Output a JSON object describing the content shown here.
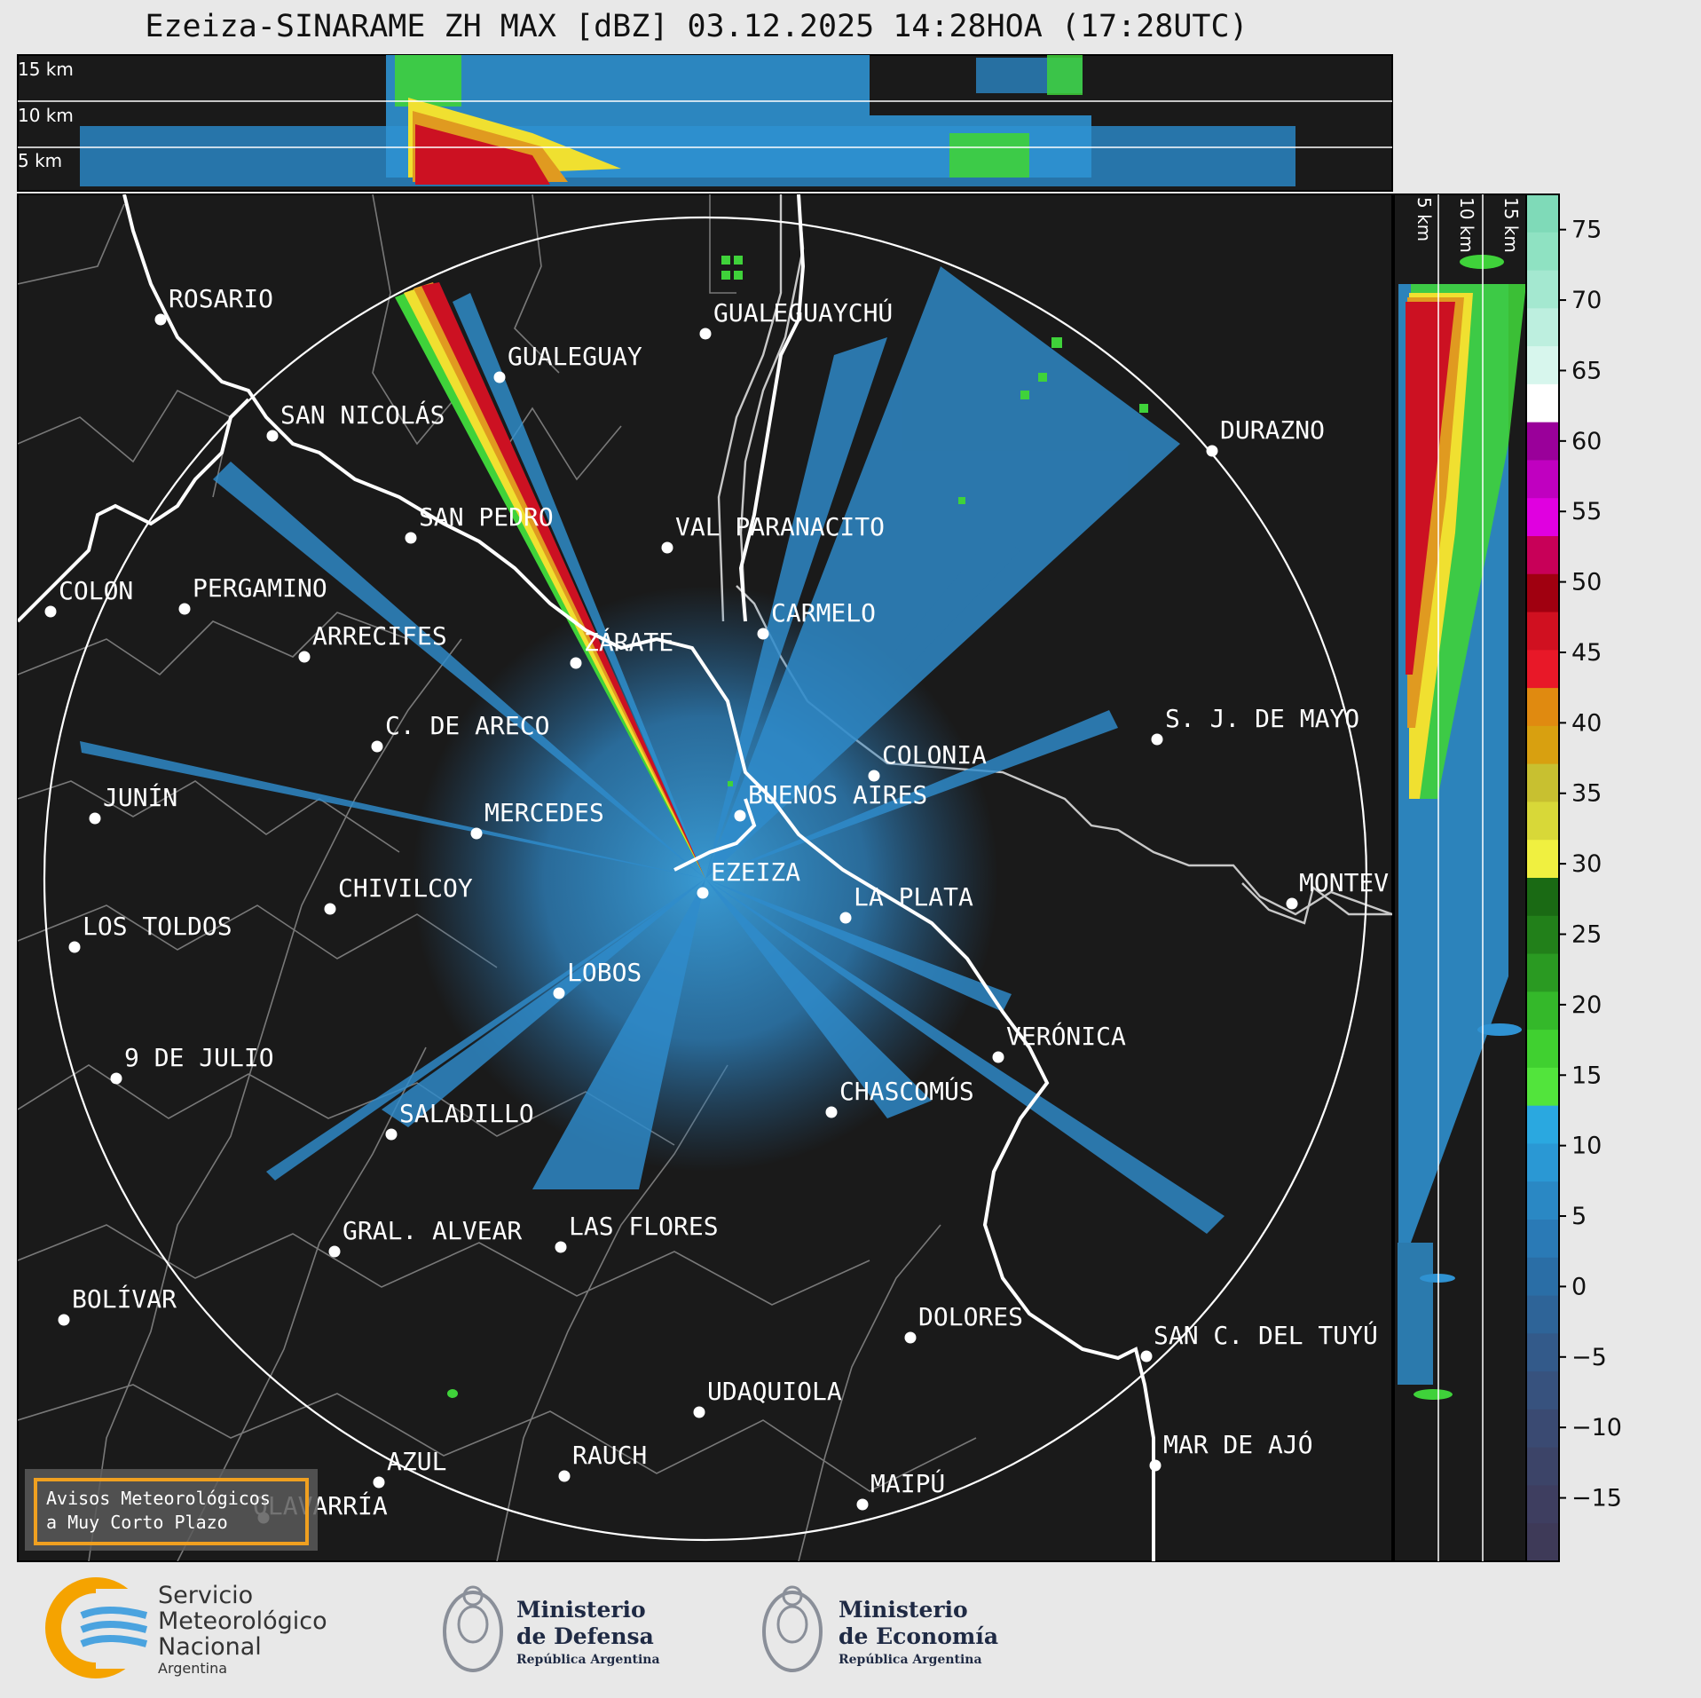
{
  "title": "Ezeiza-SINARAME ZH MAX [dBZ] 03.12.2025 14:28HOA (17:28UTC)",
  "top_panel": {
    "labels": [
      "15 km",
      "10 km",
      "5 km"
    ]
  },
  "right_panel": {
    "labels": [
      "5 km",
      "10 km",
      "15 km"
    ]
  },
  "colorbar": {
    "ticks": [
      "75",
      "70",
      "65",
      "60",
      "55",
      "50",
      "45",
      "40",
      "35",
      "30",
      "25",
      "20",
      "15",
      "10",
      "5",
      "0",
      "−5",
      "−10",
      "−15"
    ]
  },
  "cities": [
    {
      "name": "ROSARIO",
      "id": "rosario"
    },
    {
      "name": "GUALEGUAYCHÚ",
      "id": "gualeguaychu"
    },
    {
      "name": "GUALEGUAY",
      "id": "gualeguay"
    },
    {
      "name": "SAN NICOLÁS",
      "id": "san-nicolas"
    },
    {
      "name": "DURAZNO",
      "id": "durazno"
    },
    {
      "name": "SAN PEDRO",
      "id": "san-pedro"
    },
    {
      "name": "VAL PARANACITO",
      "id": "villa-paranacito"
    },
    {
      "name": "COLON",
      "id": "colon"
    },
    {
      "name": "PERGAMINO",
      "id": "pergamino"
    },
    {
      "name": "CARMELO",
      "id": "carmelo"
    },
    {
      "name": "ARRECIFES",
      "id": "arrecifes"
    },
    {
      "name": "ZÁRATE",
      "id": "zarate"
    },
    {
      "name": "S. J. DE MAYO",
      "id": "san-jose-de-mayo"
    },
    {
      "name": "C. DE ARECO",
      "id": "capitan-sarmiento"
    },
    {
      "name": "COLONIA",
      "id": "colonia"
    },
    {
      "name": "JUNÍN",
      "id": "junin"
    },
    {
      "name": "BUENOS AIRES",
      "id": "buenos-aires"
    },
    {
      "name": "MERCEDES",
      "id": "mercedes"
    },
    {
      "name": "MONTEV",
      "id": "montevideo"
    },
    {
      "name": "CHIVILCOY",
      "id": "chivilcoy"
    },
    {
      "name": "EZEIZA",
      "id": "ezeiza"
    },
    {
      "name": "LA PLATA",
      "id": "la-plata"
    },
    {
      "name": "LOS TOLDOS",
      "id": "los-toldos"
    },
    {
      "name": "LOBOS",
      "id": "lobos"
    },
    {
      "name": "VERÓNICA",
      "id": "veronica"
    },
    {
      "name": "9 DE JULIO",
      "id": "nueve-de-julio"
    },
    {
      "name": "CHASCOMÚS",
      "id": "chascomus"
    },
    {
      "name": "SALADILLO",
      "id": "saladillo"
    },
    {
      "name": "GRAL. ALVEAR",
      "id": "gral-alvear"
    },
    {
      "name": "LAS FLORES",
      "id": "las-flores"
    },
    {
      "name": "BOLÍVAR",
      "id": "bolivar"
    },
    {
      "name": "DOLORES",
      "id": "dolores"
    },
    {
      "name": "SAN C. DEL TUYÚ",
      "id": "san-clemente"
    },
    {
      "name": "UDAQUIOLA",
      "id": "udaquiola"
    },
    {
      "name": "MAR DE AJÓ",
      "id": "mar-de-ajo"
    },
    {
      "name": "AZUL",
      "id": "azul"
    },
    {
      "name": "RAUCH",
      "id": "rauch"
    },
    {
      "name": "MAIPÚ",
      "id": "maipu"
    },
    {
      "name": "OLAVARRÍA",
      "id": "olavarria"
    }
  ],
  "notice": {
    "line1": "Avisos Meteorológicos",
    "line2": "a Muy Corto Plazo"
  },
  "logos": {
    "smn": [
      "Servicio",
      "Meteorológico",
      "Nacional",
      "Argentina"
    ],
    "defensa": [
      "Ministerio",
      "de Defensa",
      "República Argentina"
    ],
    "economia": [
      "Ministerio",
      "de Economía",
      "República Argentina"
    ]
  },
  "colors": {
    "background": "#1a1a1a",
    "radar_blue": "#2f8ccc",
    "strong_red": "#cc1122",
    "notice_border": "#f0a020",
    "smn_orange": "#f5a300",
    "smn_blue": "#4aa3df"
  }
}
